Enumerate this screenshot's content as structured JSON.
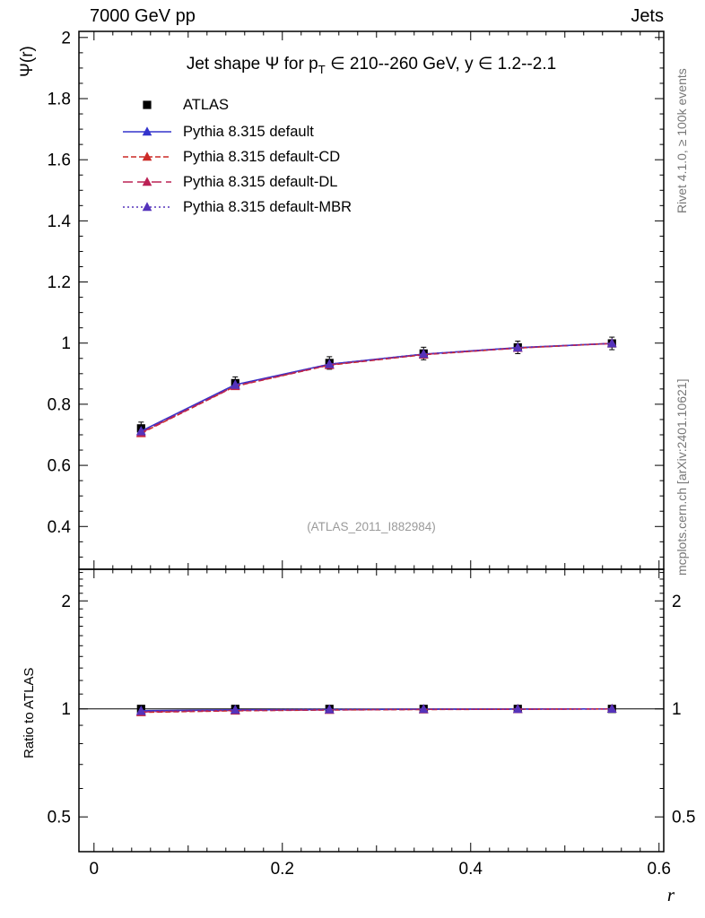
{
  "header": {
    "left": "7000 GeV pp",
    "right": "Jets"
  },
  "main_panel": {
    "ylabel": "Ψ(r)",
    "title": {
      "pre": "Jet shape Ψ for p",
      "sub": "T",
      "post": " ∈ 210--260 GeV, y ∈ 1.2--2.1"
    }
  },
  "ratio_panel": {
    "ylabel": "Ratio to ATLAS"
  },
  "watermark": "(ATLAS_2011_I882984)",
  "side_texts": {
    "top_right": "Rivet 4.1.0, ≥ 100k events",
    "bottom_right": "mcplots.cern.ch [arXiv:2401.10621]"
  },
  "chart_data": {
    "type": "line",
    "title": "Jet shape Ψ for p_T ∈ 210--260 GeV, y ∈ 1.2--2.1",
    "xlabel": "r",
    "ylabel": "Ψ(r)",
    "ratio_ylabel": "Ratio to ATLAS",
    "legend_position": "top-left inside",
    "grid": false,
    "xlim": [
      -0.016,
      0.605
    ],
    "ylim_main": [
      0.26,
      2.02
    ],
    "ylim_ratio": [
      0.4,
      2.45
    ],
    "ratio_scale": "log",
    "xticks": [
      0,
      0.2,
      0.4,
      0.6
    ],
    "yticks_main": [
      0.4,
      0.6,
      0.8,
      1,
      1.2,
      1.4,
      1.6,
      1.8,
      2
    ],
    "yticks_ratio": [
      0.5,
      1,
      2
    ],
    "x": [
      0.05,
      0.15,
      0.25,
      0.35,
      0.45,
      0.55
    ],
    "series": [
      {
        "name": "ATLAS",
        "color": "#000000",
        "marker": "square",
        "line": "none",
        "values": [
          0.721,
          0.869,
          0.935,
          0.966,
          0.986,
          0.999
        ],
        "ratio": [
          1,
          1,
          1,
          1,
          1,
          1
        ]
      },
      {
        "name": "Pythia 8.315 default",
        "color": "#3333cc",
        "marker": "triangle",
        "line": "solid",
        "values": [
          0.712,
          0.864,
          0.931,
          0.964,
          0.985,
          0.999
        ],
        "ratio": [
          0.988,
          0.994,
          0.996,
          0.998,
          0.999,
          1.0
        ]
      },
      {
        "name": "Pythia 8.315 default-CD",
        "color": "#cc2a27",
        "marker": "triangle",
        "line": "dash",
        "values": [
          0.705,
          0.859,
          0.928,
          0.962,
          0.984,
          0.999
        ],
        "ratio": [
          0.978,
          0.988,
          0.993,
          0.996,
          0.998,
          1.0
        ]
      },
      {
        "name": "Pythia 8.315 default-DL",
        "color": "#bb2255",
        "marker": "triangle",
        "line": "longdash",
        "values": [
          0.707,
          0.86,
          0.929,
          0.963,
          0.984,
          0.999
        ],
        "ratio": [
          0.981,
          0.99,
          0.994,
          0.997,
          0.998,
          1.0
        ]
      },
      {
        "name": "Pythia 8.315 default-MBR",
        "color": "#5533bb",
        "marker": "triangle",
        "line": "dot",
        "values": [
          0.711,
          0.863,
          0.931,
          0.964,
          0.985,
          0.999
        ],
        "ratio": [
          0.986,
          0.993,
          0.996,
          0.998,
          0.999,
          1.0
        ]
      }
    ]
  }
}
